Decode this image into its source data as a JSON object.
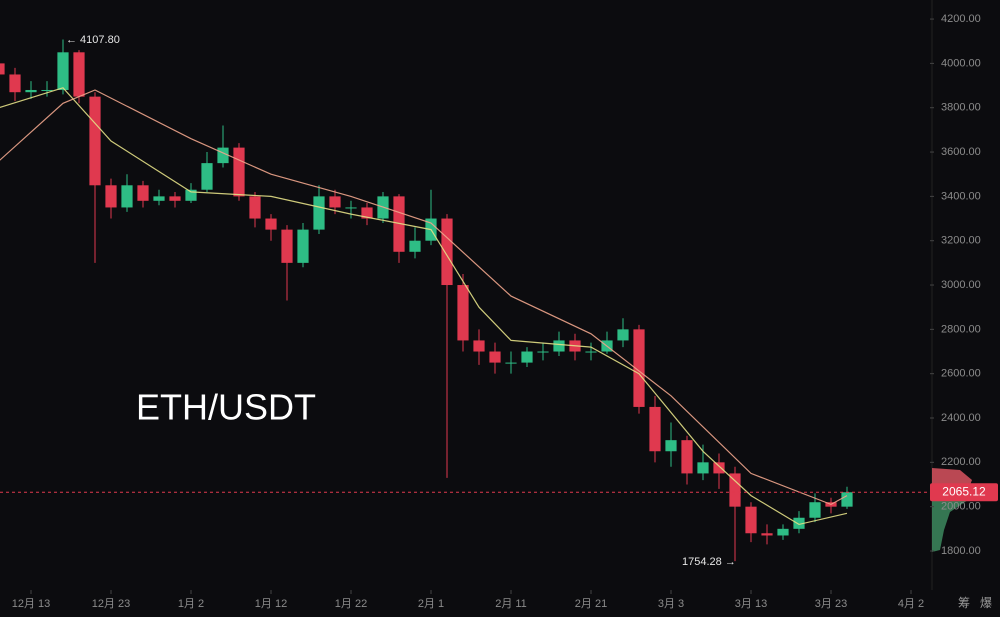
{
  "chart_data": {
    "type": "candlestick",
    "watermark": "ETH/USDT",
    "x": [
      -4,
      -2,
      0,
      2,
      4,
      6,
      8,
      10,
      12,
      14,
      16,
      18,
      20,
      22,
      24,
      26,
      28,
      30,
      32,
      34,
      36,
      38,
      40,
      42,
      44,
      46,
      48,
      50,
      52,
      54,
      56,
      58,
      60,
      62,
      64,
      66,
      68,
      70,
      72,
      74,
      76,
      78,
      80,
      82,
      84,
      86,
      88,
      90,
      92,
      94,
      96,
      98,
      100,
      102
    ],
    "open": [
      4000,
      3950,
      3870,
      3880,
      3880,
      4050,
      3850,
      3450,
      3350,
      3450,
      3380,
      3400,
      3380,
      3430,
      3550,
      3620,
      3400,
      3300,
      3250,
      3100,
      3250,
      3400,
      3350,
      3350,
      3300,
      3400,
      3150,
      3200,
      3300,
      3000,
      2750,
      2700,
      2650,
      2650,
      2700,
      2700,
      2750,
      2700,
      2700,
      2750,
      2800,
      2450,
      2250,
      2300,
      2150,
      2200,
      2150,
      2000,
      1880,
      1870,
      1900,
      1950,
      2020,
      2000
    ],
    "high": [
      4020,
      3980,
      3920,
      3920,
      4107.8,
      4060,
      3870,
      3480,
      3500,
      3470,
      3430,
      3420,
      3460,
      3600,
      3720,
      3640,
      3420,
      3320,
      3270,
      3280,
      3450,
      3430,
      3380,
      3370,
      3420,
      3410,
      3260,
      3430,
      3320,
      3050,
      2800,
      2740,
      2700,
      2720,
      2740,
      2790,
      2780,
      2740,
      2790,
      2850,
      2820,
      2500,
      2380,
      2320,
      2280,
      2240,
      2180,
      2020,
      1920,
      1920,
      1980,
      2060,
      2040,
      2090
    ],
    "low": [
      3900,
      3830,
      3840,
      3850,
      3860,
      3820,
      3100,
      3300,
      3330,
      3350,
      3360,
      3350,
      3370,
      3420,
      3530,
      3380,
      3260,
      3200,
      2930,
      3080,
      3230,
      3320,
      3300,
      3270,
      3280,
      3100,
      3120,
      3180,
      2130,
      2700,
      2640,
      2600,
      2600,
      2630,
      2660,
      2680,
      2660,
      2660,
      2690,
      2720,
      2420,
      2200,
      2180,
      2100,
      2120,
      2080,
      1754.28,
      1840,
      1830,
      1850,
      1880,
      1930,
      1970,
      1990
    ],
    "close": [
      3950,
      3870,
      3880,
      3880,
      4050,
      3850,
      3450,
      3350,
      3450,
      3380,
      3400,
      3380,
      3430,
      3550,
      3620,
      3400,
      3300,
      3250,
      3100,
      3250,
      3400,
      3350,
      3350,
      3300,
      3400,
      3150,
      3200,
      3300,
      3000,
      2750,
      2700,
      2650,
      2650,
      2700,
      2700,
      2750,
      2700,
      2700,
      2750,
      2800,
      2450,
      2250,
      2300,
      2150,
      2200,
      2150,
      2000,
      1880,
      1870,
      1900,
      1950,
      2020,
      2000,
      2065
    ],
    "up_color": "#2ebd85",
    "down_color": "#e0394f",
    "lines": [
      {
        "color": "#e3df86",
        "x": [
          -4,
          4,
          10,
          20,
          30,
          40,
          50,
          56,
          60,
          70,
          76,
          84,
          90,
          96,
          102
        ],
        "values": [
          3800,
          3890,
          3650,
          3420,
          3400,
          3320,
          3250,
          2900,
          2750,
          2720,
          2600,
          2250,
          2050,
          1920,
          1970
        ]
      },
      {
        "color": "#f0a58c",
        "x": [
          -4,
          4,
          8,
          20,
          30,
          40,
          50,
          60,
          70,
          80,
          90,
          100,
          102
        ],
        "values": [
          3560,
          3820,
          3880,
          3660,
          3500,
          3400,
          3280,
          2950,
          2780,
          2500,
          2150,
          2010,
          2050
        ]
      }
    ],
    "last_price": 2065.12,
    "last_price_color": "#e0394f",
    "annotations": [
      "← 4107.80",
      "1754.28 →"
    ],
    "xlim": [
      -3.875,
      112.375
    ],
    "ylim": [
      1624,
      4286
    ],
    "xticks": [
      {
        "value": 0,
        "label": "12月 13"
      },
      {
        "value": 10,
        "label": "12月 23"
      },
      {
        "value": 20,
        "label": "1月 2"
      },
      {
        "value": 30,
        "label": "1月 12"
      },
      {
        "value": 40,
        "label": "1月 22"
      },
      {
        "value": 50,
        "label": "2月 1"
      },
      {
        "value": 60,
        "label": "2月 11"
      },
      {
        "value": 70,
        "label": "2月 21"
      },
      {
        "value": 80,
        "label": "3月 3"
      },
      {
        "value": 90,
        "label": "3月 13"
      },
      {
        "value": 100,
        "label": "3月 23"
      },
      {
        "value": 110,
        "label": "4月 2"
      }
    ],
    "yticks": [
      {
        "value": 1800,
        "label": "1800.00"
      },
      {
        "value": 2000,
        "label": "2000.00"
      },
      {
        "value": 2200,
        "label": "2200.00"
      },
      {
        "value": 2400,
        "label": "2400.00"
      },
      {
        "value": 2600,
        "label": "2600.00"
      },
      {
        "value": 2800,
        "label": "2800.00"
      },
      {
        "value": 3000,
        "label": "3000.00"
      },
      {
        "value": 3200,
        "label": "3200.00"
      },
      {
        "value": 3400,
        "label": "3400.00"
      },
      {
        "value": 3600,
        "label": "3600.00"
      },
      {
        "value": 3800,
        "label": "3800.00"
      },
      {
        "value": 4000,
        "label": "4000.00"
      },
      {
        "value": 4200,
        "label": "4200.00"
      }
    ]
  },
  "toolbar": [
    "筹",
    "爆"
  ]
}
